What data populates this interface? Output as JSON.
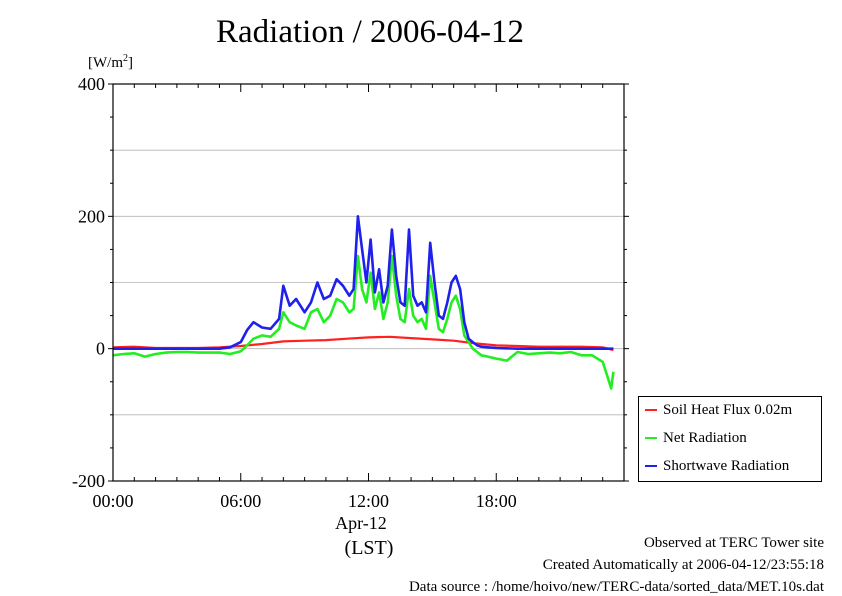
{
  "title": "Radiation / 2006-04-12",
  "unit_label": "[W/m2]",
  "unit_base": "[W/m",
  "unit_sup": "2",
  "unit_close": "]",
  "x_date_label": "Apr-12",
  "x_tz_label": "(LST)",
  "footer": {
    "line1": "Observed at TERC Tower site",
    "line2": "Created Automatically at 2006-04-12/23:55:18",
    "line3": "Data source : /home/hoivo/new/TERC-data/sorted_data/MET.10s.dat"
  },
  "chart_data": {
    "type": "line",
    "title": "Radiation / 2006-04-12",
    "ylabel": "[W/m2]",
    "xlabel": "Apr-12 (LST)",
    "xlim": [
      0,
      24
    ],
    "ylim": [
      -200,
      400
    ],
    "x_ticks": [
      0,
      6,
      12,
      18
    ],
    "x_tick_labels": [
      "00:00",
      "06:00",
      "12:00",
      "18:00"
    ],
    "y_ticks": [
      -200,
      0,
      200,
      400
    ],
    "y_tick_labels": [
      "-200",
      "0",
      "200",
      "400"
    ],
    "grid": true,
    "legend_position": "right-bottom",
    "series": [
      {
        "name": "Soil Heat Flux 0.02m",
        "color": "#ff2020",
        "x": [
          0,
          1,
          2,
          3,
          4,
          5,
          6,
          7,
          8,
          9,
          10,
          11,
          12,
          13,
          14,
          15,
          16,
          17,
          18,
          19,
          20,
          21,
          22,
          23,
          23.5
        ],
        "y": [
          2,
          3,
          1,
          1,
          1,
          2,
          4,
          7,
          11,
          12,
          13,
          15,
          17,
          18,
          16,
          14,
          12,
          8,
          5,
          4,
          3,
          3,
          3,
          2,
          -2
        ]
      },
      {
        "name": "Net Radiation",
        "color": "#22ee22",
        "x": [
          0,
          0.5,
          1,
          1.5,
          2,
          2.5,
          3,
          3.5,
          4,
          4.5,
          5,
          5.5,
          6,
          6.3,
          6.6,
          7,
          7.4,
          7.8,
          8,
          8.3,
          8.6,
          9,
          9.3,
          9.6,
          9.9,
          10.2,
          10.5,
          10.8,
          11.1,
          11.3,
          11.5,
          11.7,
          11.9,
          12.1,
          12.3,
          12.5,
          12.7,
          12.9,
          13.1,
          13.3,
          13.5,
          13.7,
          13.9,
          14.1,
          14.3,
          14.5,
          14.7,
          14.9,
          15.1,
          15.3,
          15.5,
          15.7,
          15.9,
          16.1,
          16.3,
          16.5,
          16.7,
          16.9,
          17.1,
          17.3,
          17.6,
          18,
          18.5,
          19,
          19.5,
          20,
          20.5,
          21,
          21.5,
          22,
          22.5,
          23,
          23.2,
          23.4,
          23.5
        ],
        "y": [
          -10,
          -8,
          -7,
          -12,
          -8,
          -6,
          -5,
          -5,
          -6,
          -6,
          -6,
          -8,
          -4,
          5,
          15,
          20,
          18,
          30,
          55,
          40,
          35,
          30,
          55,
          60,
          40,
          50,
          75,
          70,
          55,
          60,
          140,
          90,
          70,
          115,
          60,
          85,
          45,
          70,
          140,
          80,
          45,
          40,
          90,
          50,
          40,
          45,
          30,
          110,
          70,
          30,
          25,
          45,
          70,
          80,
          60,
          20,
          10,
          0,
          -5,
          -10,
          -12,
          -15,
          -18,
          -5,
          -8,
          -7,
          -6,
          -7,
          -5,
          -10,
          -10,
          -20,
          -40,
          -60,
          -35
        ]
      },
      {
        "name": "Shortwave Radiation",
        "color": "#2020ee",
        "x": [
          0,
          1,
          2,
          3,
          4,
          5,
          5.5,
          6,
          6.3,
          6.6,
          7,
          7.4,
          7.8,
          8,
          8.3,
          8.6,
          9,
          9.3,
          9.6,
          9.9,
          10.2,
          10.5,
          10.8,
          11.1,
          11.3,
          11.5,
          11.7,
          11.9,
          12.1,
          12.3,
          12.5,
          12.7,
          12.9,
          13.1,
          13.3,
          13.5,
          13.7,
          13.9,
          14.1,
          14.3,
          14.5,
          14.7,
          14.9,
          15.1,
          15.3,
          15.5,
          15.7,
          15.9,
          16.1,
          16.3,
          16.5,
          16.7,
          16.9,
          17.1,
          17.3,
          17.6,
          18,
          19,
          20,
          21,
          22,
          23,
          23.5
        ],
        "y": [
          0,
          0,
          0,
          0,
          0,
          0,
          2,
          10,
          28,
          40,
          32,
          30,
          45,
          95,
          65,
          75,
          55,
          70,
          100,
          75,
          80,
          105,
          95,
          80,
          90,
          200,
          150,
          100,
          165,
          85,
          120,
          70,
          95,
          180,
          110,
          70,
          65,
          180,
          80,
          65,
          70,
          55,
          160,
          100,
          50,
          45,
          70,
          100,
          110,
          90,
          40,
          15,
          10,
          5,
          3,
          2,
          1,
          0,
          0,
          0,
          0,
          0,
          0
        ]
      }
    ]
  }
}
